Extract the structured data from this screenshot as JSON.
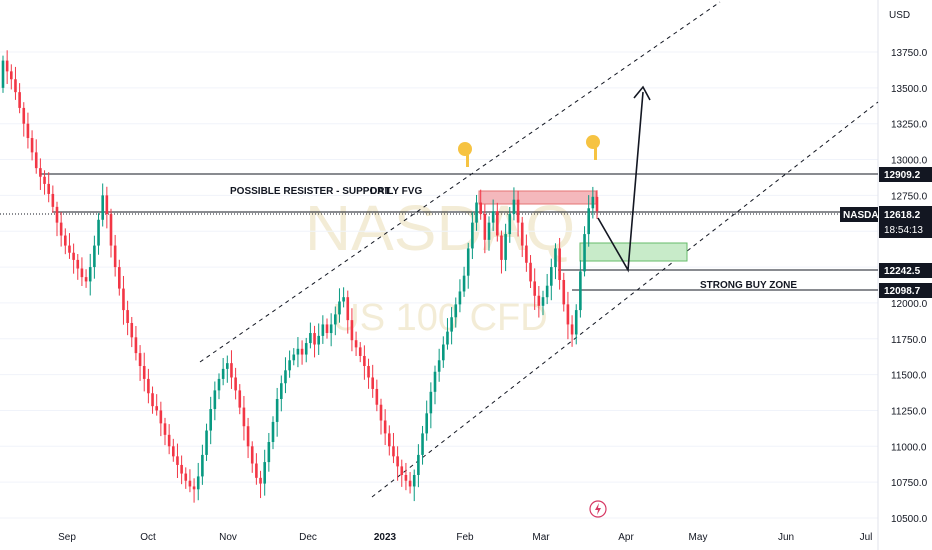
{
  "chart_data": {
    "type": "candlestick",
    "instrument": "NASDAQ",
    "watermark": {
      "symbol": "NASDAQ",
      "subtitle": "US 100 CFD"
    },
    "currency": "USD",
    "y_range": [
      10500,
      13950
    ],
    "y_ticks": [
      10500,
      10750,
      11000,
      11250,
      11500,
      11750,
      12000,
      12250,
      12500,
      12750,
      13000,
      13250,
      13500,
      13750
    ],
    "y_tick_labels": [
      "10500.0",
      "10750.0",
      "11000.0",
      "11250.0",
      "11500.0",
      "11750.0",
      "12000.0",
      "12250.0",
      "12500.0",
      "12750.0",
      "13000.0",
      "13250.0",
      "13500.0",
      "13750.0"
    ],
    "x_tick_labels": [
      "Sep",
      "Oct",
      "Nov",
      "Dec",
      "2023",
      "Feb",
      "Mar",
      "Apr",
      "May",
      "Jun",
      "Jul"
    ],
    "price_tags": [
      {
        "label": "NASDAQ",
        "value": "12618.2",
        "countdown": "18:54:13",
        "color": "#131722"
      },
      {
        "label": "",
        "value": "12909.2",
        "color": "#131722"
      },
      {
        "label": "",
        "value": "12242.5",
        "color": "#131722"
      },
      {
        "label": "",
        "value": "12098.7",
        "color": "#131722"
      }
    ],
    "horizontal_levels": [
      12909.2,
      12618.2,
      12242.5,
      12098.7
    ],
    "annotations": [
      {
        "text": "POSSIBLE RESISTER  - SUPPORT  ",
        "at": 12887
      },
      {
        "text": "DAILY FVG",
        "at": 12887
      },
      {
        "text": "STRONG BUY ZONE",
        "at": 12118
      }
    ],
    "zones": [
      {
        "kind": "resistance",
        "from": 12700,
        "to": 12790,
        "color": "#f4b8bc"
      },
      {
        "kind": "buy",
        "from": 12280,
        "to": 12405,
        "color": "#c8ebc9"
      }
    ],
    "colors": {
      "up": "#089981",
      "down": "#f23645",
      "grid": "#f0f3fa",
      "text": "#131722"
    },
    "close_series": [
      13690,
      13615,
      13560,
      13470,
      13360,
      13250,
      13150,
      13050,
      12940,
      12880,
      12830,
      12760,
      12670,
      12560,
      12470,
      12400,
      12350,
      12300,
      12240,
      12180,
      12150,
      12250,
      12400,
      12580,
      12750,
      12620,
      12400,
      12250,
      12100,
      11950,
      11860,
      11760,
      11650,
      11560,
      11470,
      11370,
      11280,
      11250,
      11160,
      11080,
      11000,
      10930,
      10870,
      10810,
      10760,
      10720,
      10700,
      10790,
      10940,
      11110,
      11260,
      11390,
      11470,
      11540,
      11580,
      11480,
      11390,
      11270,
      11140,
      11000,
      10880,
      10780,
      10740,
      10890,
      11030,
      11170,
      11330,
      11440,
      11530,
      11600,
      11640,
      11680,
      11640,
      11720,
      11790,
      11710,
      11770,
      11850,
      11790,
      11850,
      11920,
      12010,
      12040,
      11880,
      11740,
      11690,
      11630,
      11560,
      11480,
      11400,
      11290,
      11180,
      11090,
      11000,
      10930,
      10860,
      10800,
      10760,
      10720,
      10800,
      10940,
      11090,
      11230,
      11380,
      11520,
      11600,
      11710,
      11800,
      11900,
      11990,
      12080,
      12190,
      12380,
      12560,
      12700,
      12620,
      12440,
      12560,
      12640,
      12470,
      12300,
      12480,
      12620,
      12720,
      12560,
      12400,
      12280,
      12150,
      12050,
      11980,
      12040,
      12120,
      12250,
      12380,
      12160,
      11990,
      11850,
      11780,
      11950,
      12220,
      12480,
      12660,
      12740,
      12640
    ]
  }
}
